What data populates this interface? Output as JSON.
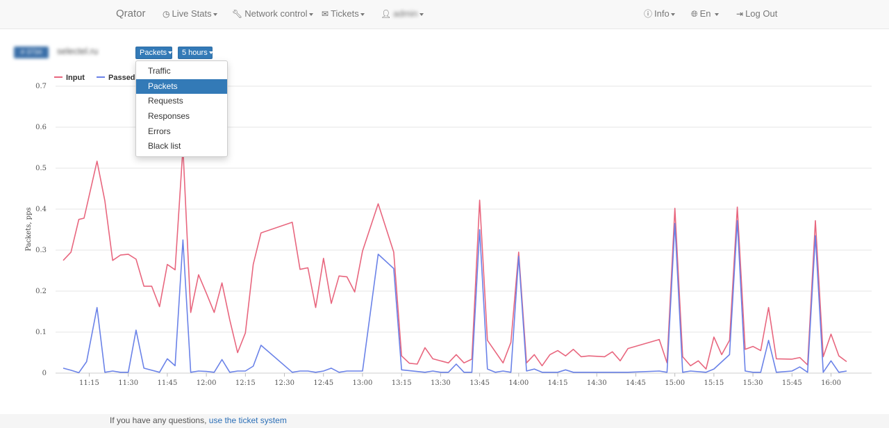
{
  "nav": {
    "brand": "Qrator",
    "live_stats": "Live Stats",
    "network_control": "Network control",
    "tickets": "Tickets",
    "user": "admin",
    "info": "Info",
    "lang": "En",
    "logout": "Log Out"
  },
  "toolbar": {
    "site_badge": "# 3734",
    "site_name": "selectel.ru",
    "metric_button": "Packets",
    "range_button": "5 hours"
  },
  "dropdown": {
    "items": [
      "Traffic",
      "Packets",
      "Requests",
      "Responses",
      "Errors",
      "Black list"
    ],
    "selected": "Packets"
  },
  "footer": {
    "text": "If you have any questions, ",
    "link": "use the ticket system"
  },
  "colors": {
    "input": "#e8667e",
    "passed": "#6a82e8",
    "accent": "#337ab7"
  },
  "chart_data": {
    "type": "line",
    "ylabel": "Packets, pps",
    "ylim": [
      0,
      0.7
    ],
    "yticks": [
      0,
      0.1,
      0.2,
      0.3,
      0.4,
      0.5,
      0.6,
      0.7
    ],
    "xlim": [
      "11:05",
      "16:10"
    ],
    "xticks": [
      "11:15",
      "11:30",
      "11:45",
      "12:00",
      "12:15",
      "12:30",
      "12:45",
      "13:00",
      "13:15",
      "13:30",
      "13:45",
      "14:00",
      "14:15",
      "14:30",
      "14:45",
      "15:00",
      "15:15",
      "15:30",
      "15:45",
      "16:00"
    ],
    "grid": true,
    "legend": "top-left",
    "series": [
      {
        "name": "Input",
        "points": [
          [
            "11:05",
            0.275
          ],
          [
            "11:08",
            0.295
          ],
          [
            "11:11",
            0.375
          ],
          [
            "11:13",
            0.378
          ],
          [
            "11:18",
            0.517
          ],
          [
            "11:21",
            0.42
          ],
          [
            "11:24",
            0.275
          ],
          [
            "11:27",
            0.288
          ],
          [
            "11:30",
            0.29
          ],
          [
            "11:33",
            0.278
          ],
          [
            "11:36",
            0.212
          ],
          [
            "11:39",
            0.212
          ],
          [
            "11:42",
            0.162
          ],
          [
            "11:45",
            0.265
          ],
          [
            "11:48",
            0.252
          ],
          [
            "11:51",
            0.55
          ],
          [
            "11:54",
            0.148
          ],
          [
            "11:57",
            0.24
          ],
          [
            "12:00",
            0.195
          ],
          [
            "12:03",
            0.148
          ],
          [
            "12:06",
            0.22
          ],
          [
            "12:09",
            0.13
          ],
          [
            "12:12",
            0.05
          ],
          [
            "12:15",
            0.098
          ],
          [
            "12:18",
            0.265
          ],
          [
            "12:21",
            0.342
          ],
          [
            "12:33",
            0.368
          ],
          [
            "12:36",
            0.253
          ],
          [
            "12:39",
            0.257
          ],
          [
            "12:42",
            0.16
          ],
          [
            "12:45",
            0.28
          ],
          [
            "12:48",
            0.17
          ],
          [
            "12:51",
            0.237
          ],
          [
            "12:54",
            0.235
          ],
          [
            "12:57",
            0.198
          ],
          [
            "13:00",
            0.298
          ],
          [
            "13:06",
            0.413
          ],
          [
            "13:12",
            0.295
          ],
          [
            "13:15",
            0.042
          ],
          [
            "13:18",
            0.024
          ],
          [
            "13:21",
            0.022
          ],
          [
            "13:24",
            0.062
          ],
          [
            "13:27",
            0.035
          ],
          [
            "13:33",
            0.025
          ],
          [
            "13:36",
            0.045
          ],
          [
            "13:39",
            0.025
          ],
          [
            "13:42",
            0.034
          ],
          [
            "13:45",
            0.422
          ],
          [
            "13:48",
            0.08
          ],
          [
            "13:54",
            0.025
          ],
          [
            "13:57",
            0.075
          ],
          [
            "14:00",
            0.295
          ],
          [
            "14:03",
            0.025
          ],
          [
            "14:06",
            0.045
          ],
          [
            "14:09",
            0.018
          ],
          [
            "14:12",
            0.045
          ],
          [
            "14:15",
            0.055
          ],
          [
            "14:18",
            0.042
          ],
          [
            "14:21",
            0.058
          ],
          [
            "14:24",
            0.04
          ],
          [
            "14:27",
            0.042
          ],
          [
            "14:33",
            0.04
          ],
          [
            "14:36",
            0.052
          ],
          [
            "14:39",
            0.03
          ],
          [
            "14:42",
            0.06
          ],
          [
            "14:54",
            0.082
          ],
          [
            "14:57",
            0.025
          ],
          [
            "15:00",
            0.402
          ],
          [
            "15:03",
            0.04
          ],
          [
            "15:06",
            0.018
          ],
          [
            "15:09",
            0.03
          ],
          [
            "15:12",
            0.01
          ],
          [
            "15:15",
            0.088
          ],
          [
            "15:18",
            0.045
          ],
          [
            "15:21",
            0.08
          ],
          [
            "15:24",
            0.405
          ],
          [
            "15:27",
            0.058
          ],
          [
            "15:30",
            0.065
          ],
          [
            "15:33",
            0.055
          ],
          [
            "15:36",
            0.16
          ],
          [
            "15:39",
            0.035
          ],
          [
            "15:45",
            0.034
          ],
          [
            "15:48",
            0.038
          ],
          [
            "15:51",
            0.02
          ],
          [
            "15:54",
            0.372
          ],
          [
            "15:57",
            0.04
          ],
          [
            "16:00",
            0.095
          ],
          [
            "16:03",
            0.042
          ],
          [
            "16:06",
            0.028
          ]
        ]
      },
      {
        "name": "Passed",
        "points": [
          [
            "11:05",
            0.012
          ],
          [
            "11:08",
            0.007
          ],
          [
            "11:11",
            0.001
          ],
          [
            "11:14",
            0.028
          ],
          [
            "11:18",
            0.16
          ],
          [
            "11:21",
            0.002
          ],
          [
            "11:24",
            0.005
          ],
          [
            "11:27",
            0.002
          ],
          [
            "11:30",
            0.002
          ],
          [
            "11:33",
            0.105
          ],
          [
            "11:36",
            0.012
          ],
          [
            "11:42",
            0.002
          ],
          [
            "11:45",
            0.035
          ],
          [
            "11:48",
            0.018
          ],
          [
            "11:51",
            0.325
          ],
          [
            "11:54",
            0.002
          ],
          [
            "11:57",
            0.005
          ],
          [
            "12:00",
            0.004
          ],
          [
            "12:03",
            0.002
          ],
          [
            "12:06",
            0.033
          ],
          [
            "12:09",
            0.002
          ],
          [
            "12:12",
            0.005
          ],
          [
            "12:15",
            0.005
          ],
          [
            "12:18",
            0.017
          ],
          [
            "12:21",
            0.068
          ],
          [
            "12:33",
            0.002
          ],
          [
            "12:36",
            0.005
          ],
          [
            "12:39",
            0.005
          ],
          [
            "12:42",
            0.002
          ],
          [
            "12:45",
            0.005
          ],
          [
            "12:48",
            0.012
          ],
          [
            "12:51",
            0.002
          ],
          [
            "12:54",
            0.005
          ],
          [
            "12:57",
            0.005
          ],
          [
            "13:00",
            0.005
          ],
          [
            "13:06",
            0.29
          ],
          [
            "13:12",
            0.255
          ],
          [
            "13:15",
            0.008
          ],
          [
            "13:24",
            0.002
          ],
          [
            "13:27",
            0.005
          ],
          [
            "13:30",
            0.002
          ],
          [
            "13:33",
            0.002
          ],
          [
            "13:36",
            0.022
          ],
          [
            "13:39",
            0.002
          ],
          [
            "13:42",
            0.002
          ],
          [
            "13:45",
            0.35
          ],
          [
            "13:48",
            0.01
          ],
          [
            "13:51",
            0.002
          ],
          [
            "13:54",
            0.005
          ],
          [
            "13:57",
            0.002
          ],
          [
            "14:00",
            0.285
          ],
          [
            "14:03",
            0.005
          ],
          [
            "14:06",
            0.01
          ],
          [
            "14:09",
            0.002
          ],
          [
            "14:15",
            0.002
          ],
          [
            "14:18",
            0.008
          ],
          [
            "14:21",
            0.002
          ],
          [
            "14:42",
            0.002
          ],
          [
            "14:54",
            0.005
          ],
          [
            "14:57",
            0.002
          ],
          [
            "15:00",
            0.365
          ],
          [
            "15:03",
            0.002
          ],
          [
            "15:06",
            0.005
          ],
          [
            "15:12",
            0.002
          ],
          [
            "15:15",
            0.01
          ],
          [
            "15:21",
            0.045
          ],
          [
            "15:24",
            0.372
          ],
          [
            "15:27",
            0.005
          ],
          [
            "15:30",
            0.002
          ],
          [
            "15:33",
            0.002
          ],
          [
            "15:36",
            0.08
          ],
          [
            "15:39",
            0.002
          ],
          [
            "15:45",
            0.005
          ],
          [
            "15:48",
            0.015
          ],
          [
            "15:51",
            0.002
          ],
          [
            "15:54",
            0.335
          ],
          [
            "15:57",
            0.002
          ],
          [
            "16:00",
            0.03
          ],
          [
            "16:03",
            0.002
          ],
          [
            "16:06",
            0.005
          ]
        ]
      }
    ]
  }
}
